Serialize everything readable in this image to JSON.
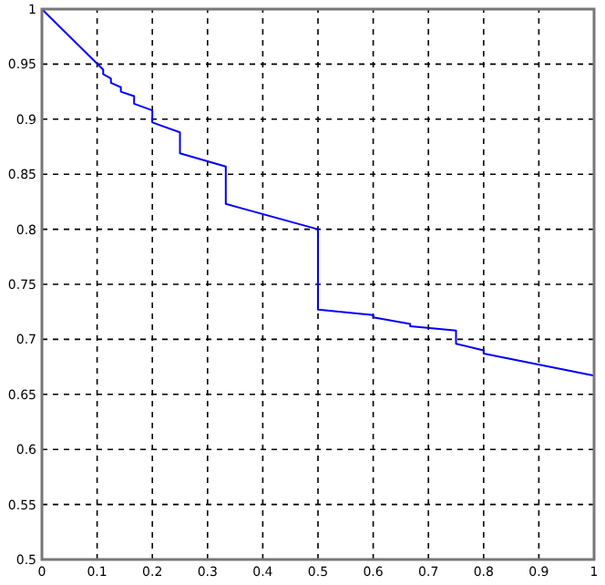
{
  "chart_data": {
    "type": "line",
    "x": [
      0,
      0.111,
      0.111,
      0.125,
      0.125,
      0.143,
      0.143,
      0.167,
      0.167,
      0.2,
      0.2,
      0.25,
      0.25,
      0.333,
      0.333,
      0.5,
      0.5,
      0.6,
      0.6,
      0.667,
      0.667,
      0.75,
      0.75,
      0.8,
      0.8,
      1
    ],
    "series": [
      {
        "color": "#0000ff",
        "values": [
          1,
          0.945,
          0.941,
          0.937,
          0.933,
          0.929,
          0.925,
          0.921,
          0.914,
          0.908,
          0.897,
          0.888,
          0.869,
          0.857,
          0.823,
          0.8,
          0.727,
          0.722,
          0.72,
          0.714,
          0.712,
          0.708,
          0.696,
          0.69,
          0.687,
          0.667
        ]
      }
    ],
    "xlim": [
      0,
      1
    ],
    "xticks": [
      0,
      0.1,
      0.2,
      0.3,
      0.4,
      0.5,
      0.6,
      0.7,
      0.8,
      0.9,
      1
    ],
    "ylim": [
      0.5,
      1
    ],
    "yticks": [
      0.5,
      0.55,
      0.6,
      0.65,
      0.7,
      0.75,
      0.8,
      0.85,
      0.9,
      0.95,
      1
    ],
    "grid": true,
    "line_style": "solid",
    "marker": "none"
  }
}
